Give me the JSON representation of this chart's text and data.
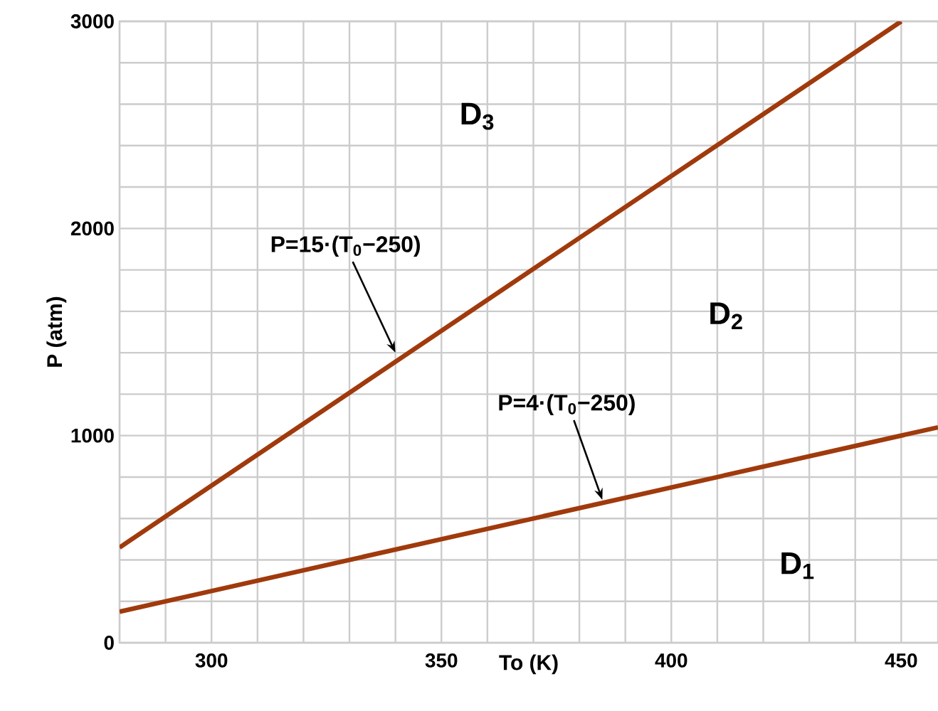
{
  "chart_data": {
    "type": "line",
    "xlabel": "To  (K)",
    "ylabel": "P  (atm)",
    "xlim": [
      280,
      458
    ],
    "ylim": [
      0,
      3000
    ],
    "xticks": [
      {
        "value": 280,
        "label": null
      },
      {
        "value": 290,
        "label": null
      },
      300,
      {
        "value": 310,
        "label": null
      },
      {
        "value": 320,
        "label": null
      },
      {
        "value": 330,
        "label": null
      },
      {
        "value": 340,
        "label": null
      },
      350,
      {
        "value": 360,
        "label": null
      },
      {
        "value": 370,
        "label": null
      },
      {
        "value": 380,
        "label": null
      },
      {
        "value": 390,
        "label": null
      },
      400,
      {
        "value": 410,
        "label": null
      },
      {
        "value": 420,
        "label": null
      },
      {
        "value": 430,
        "label": null
      },
      {
        "value": 440,
        "label": null
      },
      450
    ],
    "yticks": [
      0,
      {
        "value": 200,
        "label": null
      },
      {
        "value": 400,
        "label": null
      },
      {
        "value": 600,
        "label": null
      },
      {
        "value": 800,
        "label": null
      },
      1000,
      {
        "value": 1200,
        "label": null
      },
      {
        "value": 1400,
        "label": null
      },
      {
        "value": 1600,
        "label": null
      },
      {
        "value": 1800,
        "label": null
      },
      2000,
      {
        "value": 2200,
        "label": null
      },
      {
        "value": 2400,
        "label": null
      },
      {
        "value": 2600,
        "label": null
      },
      {
        "value": 2800,
        "label": null
      },
      3000
    ],
    "grid": true,
    "line_style": "solid",
    "marker": "none",
    "series": [
      {
        "color": "#a03a0c",
        "x": [
          280,
          450
        ],
        "values": [
          460,
          3000
        ]
      },
      {
        "color": "#a03a0c",
        "x": [
          280,
          458
        ],
        "values": [
          150,
          1040
        ]
      }
    ],
    "annotations": [
      {
        "text": "P=15·(T$_{0}$−250)",
        "x": 340,
        "y": 1400
      },
      {
        "text": "P=4·(T$_{0}$−250)",
        "x": 385,
        "y": 690
      },
      "D$_{3}$",
      "D$_{2}$",
      "D$_{1}$"
    ]
  }
}
